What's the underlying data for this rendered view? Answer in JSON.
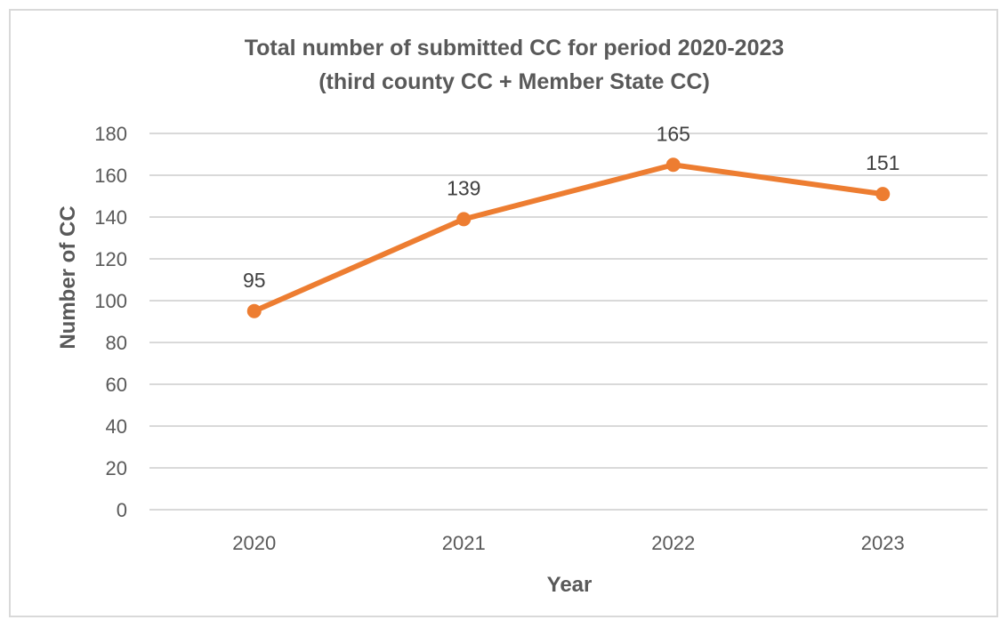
{
  "chart_data": {
    "type": "line",
    "title_line1": "Total number of submitted CC for period 2020-2023",
    "title_line2": "(third county CC + Member State CC)",
    "xlabel": "Year",
    "ylabel": "Number of CC",
    "categories": [
      "2020",
      "2021",
      "2022",
      "2023"
    ],
    "series": [
      {
        "values": [
          95,
          139,
          165,
          151
        ]
      }
    ],
    "ylim": [
      0,
      180
    ],
    "yticks": [
      0,
      20,
      40,
      60,
      80,
      100,
      120,
      140,
      160,
      180
    ],
    "grid": true,
    "data_labels": true,
    "line_color": "#ed7d31",
    "grid_color": "#d9d9d9",
    "text_color": "#595959"
  }
}
